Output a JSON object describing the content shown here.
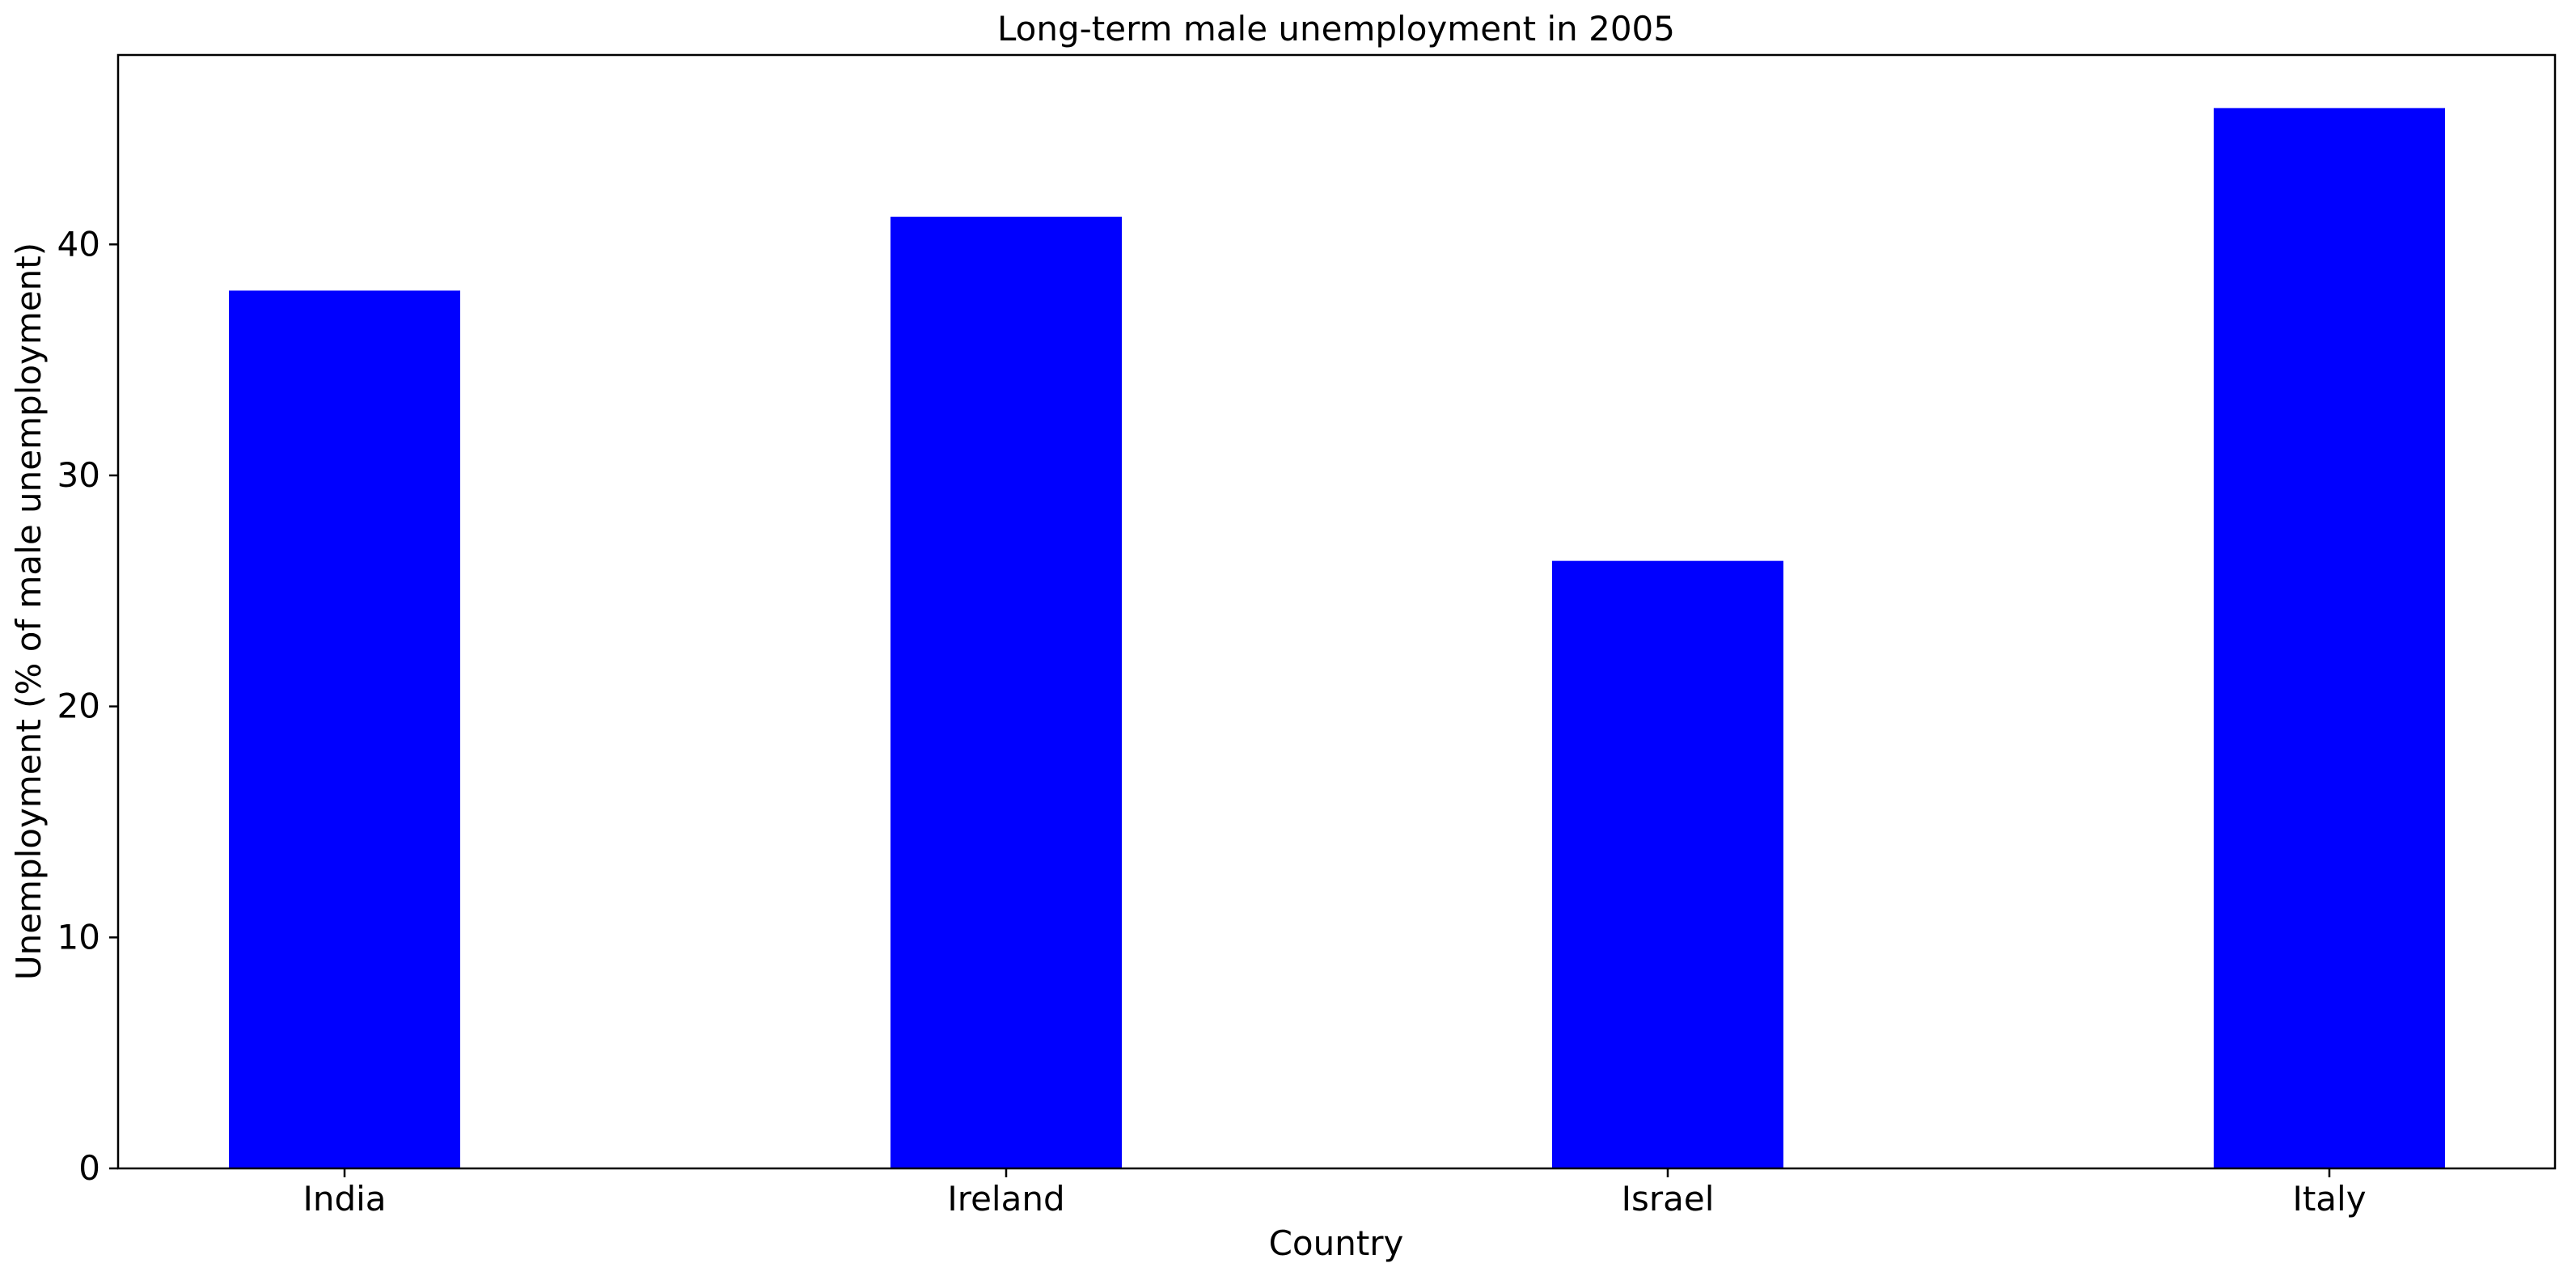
{
  "chart_data": {
    "type": "bar",
    "title": "Long-term male unemployment in 2005",
    "xlabel": "Country",
    "ylabel": "Unemployment (% of male unemployment)",
    "categories": [
      "India",
      "Ireland",
      "Israel",
      "Italy"
    ],
    "values": [
      38.0,
      41.2,
      26.3,
      45.9
    ],
    "ylim": [
      0,
      48.2
    ],
    "yticks": [
      0,
      10,
      20,
      30,
      40
    ],
    "ytick_labels": [
      "0",
      "10",
      "20",
      "30",
      "40"
    ],
    "bar_color": "#0000ff",
    "grid": false,
    "legend": "none"
  }
}
